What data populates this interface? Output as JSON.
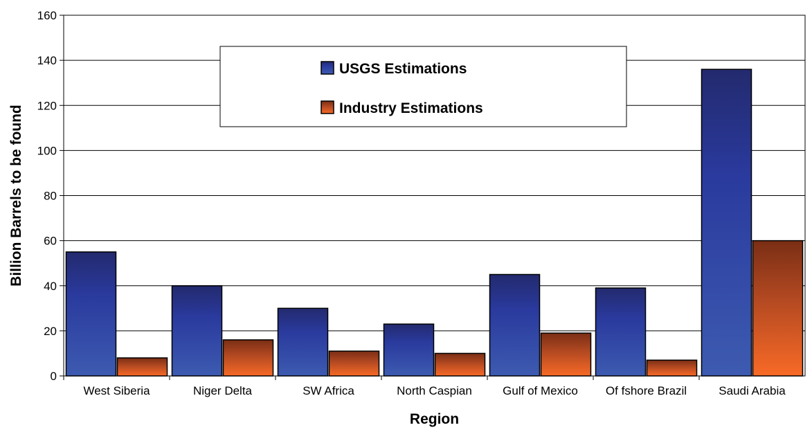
{
  "chart_data": {
    "type": "bar",
    "title": "",
    "xlabel": "Region",
    "ylabel": "Billion Barrels to be found",
    "ylim": [
      0,
      160
    ],
    "yticks": [
      0,
      20,
      40,
      60,
      80,
      100,
      120,
      140,
      160
    ],
    "grid": true,
    "legend_position": "top-center",
    "categories": [
      "West Siberia",
      "Niger Delta",
      "SW Africa",
      "North Caspian",
      "Gulf of Mexico",
      "Of fshore Brazil",
      "Saudi Arabia"
    ],
    "series": [
      {
        "name": "USGS Estimations",
        "color": "#2d3d9a",
        "values": [
          55,
          40,
          30,
          23,
          45,
          39,
          136
        ]
      },
      {
        "name": "Industry Estimations",
        "color": "#f06a2a",
        "values": [
          8,
          16,
          11,
          10,
          19,
          7,
          60
        ]
      }
    ]
  }
}
